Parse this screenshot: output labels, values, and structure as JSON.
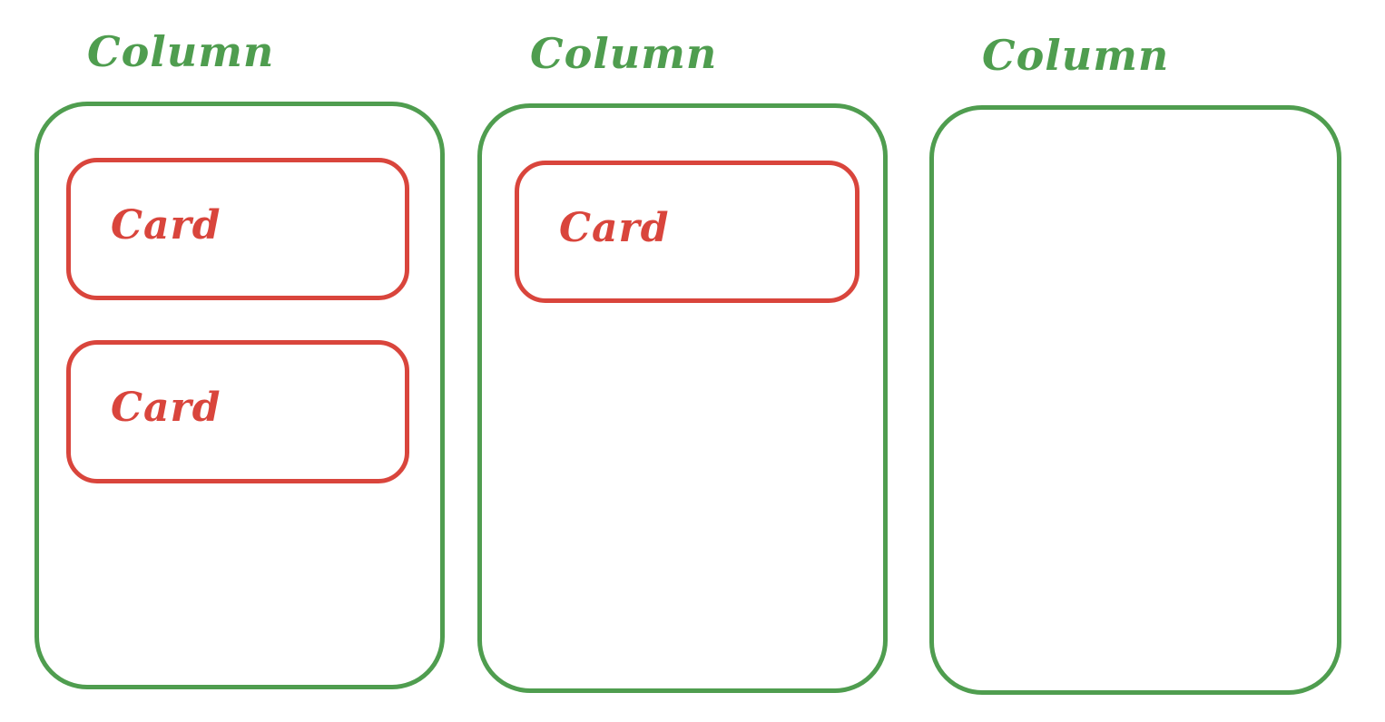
{
  "colors": {
    "column": "#4f9d4f",
    "card": "#d9453c"
  },
  "columns": [
    {
      "title": "Column",
      "cards": [
        {
          "label": "Card"
        },
        {
          "label": "Card"
        }
      ]
    },
    {
      "title": "Column",
      "cards": [
        {
          "label": "Card"
        }
      ]
    },
    {
      "title": "Column",
      "cards": []
    }
  ]
}
